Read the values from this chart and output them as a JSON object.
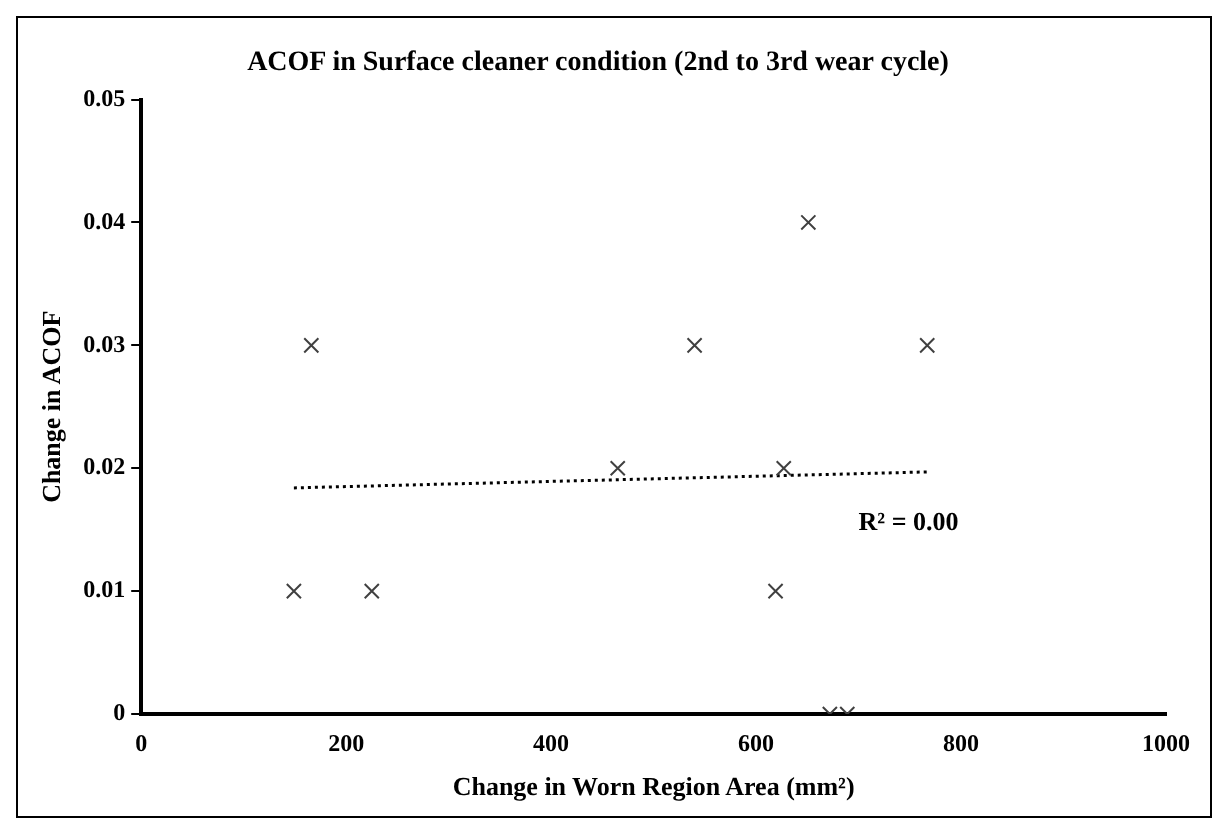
{
  "chart_data": {
    "type": "scatter",
    "title": "ACOF in Surface cleaner condition (2nd to 3rd wear cycle)",
    "xlabel": "Change in Worn Region Area (mm²)",
    "ylabel": "Change in ACOF",
    "xlim": [
      0,
      1000
    ],
    "xticks": [
      0,
      200,
      400,
      600,
      800,
      1000
    ],
    "ylim": [
      0,
      0.05
    ],
    "yticks": [
      0,
      0.01,
      0.02,
      0.03,
      0.04,
      0.05
    ],
    "grid": false,
    "legend": false,
    "marker": "cross",
    "annotations": [
      "R² = 0.00"
    ],
    "series": [
      {
        "type": "scatter",
        "color": "#404040",
        "x": [
          149,
          166,
          225,
          465,
          540,
          619,
          627,
          651,
          672,
          689,
          767
        ],
        "values": [
          0.01,
          0.03,
          0.01,
          0.02,
          0.03,
          0.01,
          0.02,
          0.04,
          0,
          0,
          0.03
        ]
      },
      {
        "type": "line",
        "color": "#000000",
        "line_style": "dotted",
        "marker": "none",
        "x": [
          149,
          767
        ],
        "values": [
          0.0184,
          0.0197
        ]
      }
    ]
  }
}
